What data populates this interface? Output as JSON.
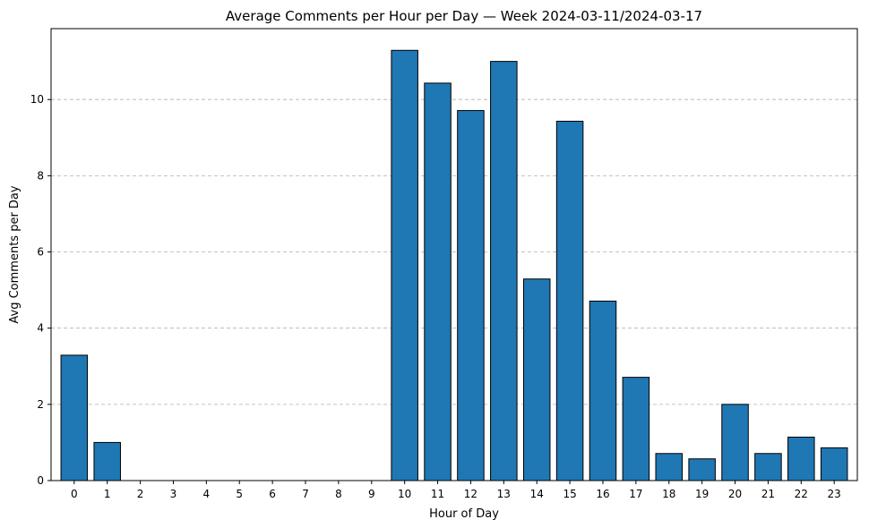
{
  "chart_data": {
    "type": "bar",
    "title": "Average Comments per Hour per Day — Week 2024-03-11/2024-03-17",
    "xlabel": "Hour of Day",
    "ylabel": "Avg Comments per Day",
    "categories": [
      "0",
      "1",
      "2",
      "3",
      "4",
      "5",
      "6",
      "7",
      "8",
      "9",
      "10",
      "11",
      "12",
      "13",
      "14",
      "15",
      "16",
      "17",
      "18",
      "19",
      "20",
      "21",
      "22",
      "23"
    ],
    "values": [
      3.29,
      1.0,
      0,
      0,
      0,
      0,
      0,
      0,
      0,
      0,
      11.29,
      10.43,
      9.71,
      11.0,
      5.29,
      9.43,
      4.71,
      2.71,
      0.71,
      0.57,
      2.0,
      0.71,
      1.14,
      0.86
    ],
    "ylim": [
      0,
      11.86
    ],
    "yticks": [
      0,
      2,
      4,
      6,
      8,
      10
    ],
    "grid": "y-dashed",
    "bar_color": "#1f77b4",
    "edge_color": "#000000"
  }
}
